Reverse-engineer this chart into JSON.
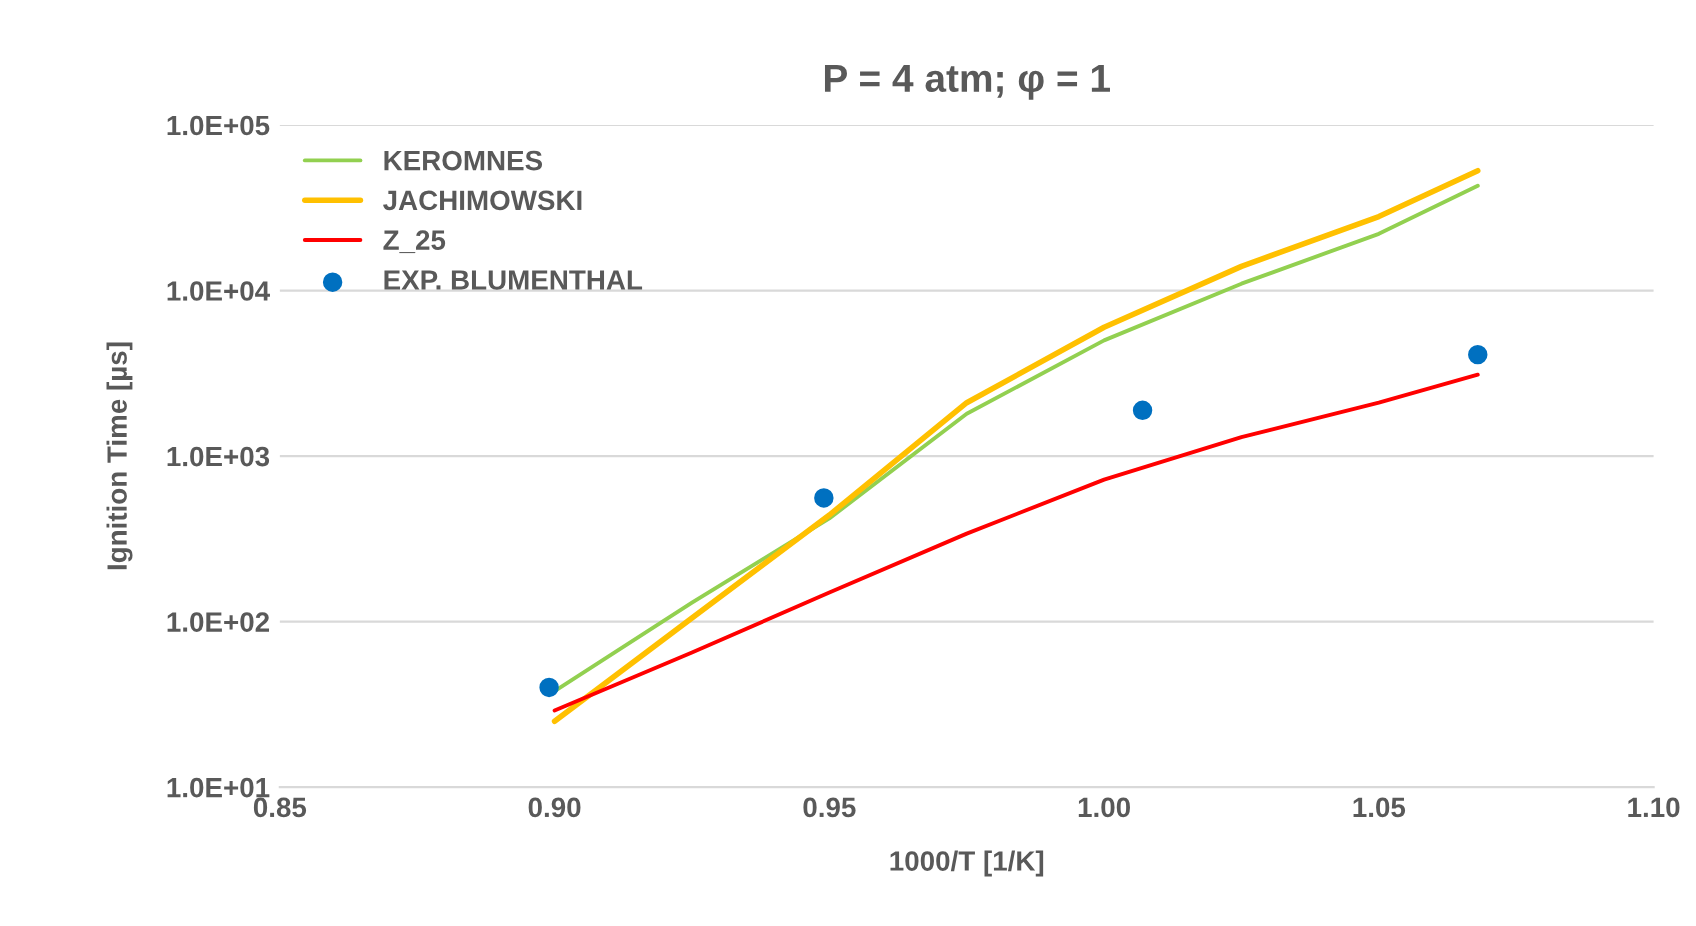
{
  "chart_data": {
    "type": "line",
    "title": "P = 4 atm; φ = 1",
    "xlabel": "1000/T [1/K]",
    "ylabel": "Ignition Time [µs]",
    "log": "y",
    "grid": "y",
    "legend": "top left",
    "xlim": [
      0.85,
      1.1
    ],
    "xticks": [
      {
        "value": 0.85,
        "label": "0.85"
      },
      {
        "value": 0.9,
        "label": "0.90"
      },
      {
        "value": 0.95,
        "label": "0.95"
      },
      {
        "value": 1.0,
        "label": "1.00"
      },
      {
        "value": 1.05,
        "label": "1.05"
      },
      {
        "value": 1.1,
        "label": "1.10"
      }
    ],
    "ylim": [
      10,
      100000
    ],
    "yticks": [
      {
        "value": 10,
        "label": "1.0E+01"
      },
      {
        "value": 100,
        "label": "1.0E+02"
      },
      {
        "value": 1000,
        "label": "1.0E+03"
      },
      {
        "value": 10000,
        "label": "1.0E+04"
      },
      {
        "value": 100000,
        "label": "1.0E+05"
      }
    ],
    "series": [
      {
        "name": "KEROMNES",
        "color": "#92d050",
        "x": [
          0.9,
          0.925,
          0.95,
          0.975,
          1.0,
          1.025,
          1.05,
          1.068
        ],
        "values": [
          38,
          130,
          420,
          1800,
          5000,
          11000,
          22000,
          43000
        ]
      },
      {
        "name": "JACHIMOWSKI",
        "color": "#ffc000",
        "x": [
          0.9,
          0.925,
          0.95,
          0.975,
          1.0,
          1.025,
          1.05,
          1.068
        ],
        "values": [
          25,
          105,
          440,
          2100,
          6000,
          14000,
          28000,
          53000
        ]
      },
      {
        "name": "Z_25",
        "color": "#ff0000",
        "x": [
          0.9,
          0.925,
          0.95,
          0.975,
          1.0,
          1.025,
          1.05,
          1.068
        ],
        "values": [
          29,
          65,
          150,
          340,
          720,
          1300,
          2100,
          3100
        ]
      },
      {
        "name": "EXP. BLUMENTHAL",
        "type": "scatter",
        "color": "#0070c0",
        "marker": "circle",
        "x": [
          0.899,
          0.949,
          1.007,
          1.068
        ],
        "values": [
          40,
          558,
          1890,
          4100
        ]
      }
    ]
  }
}
